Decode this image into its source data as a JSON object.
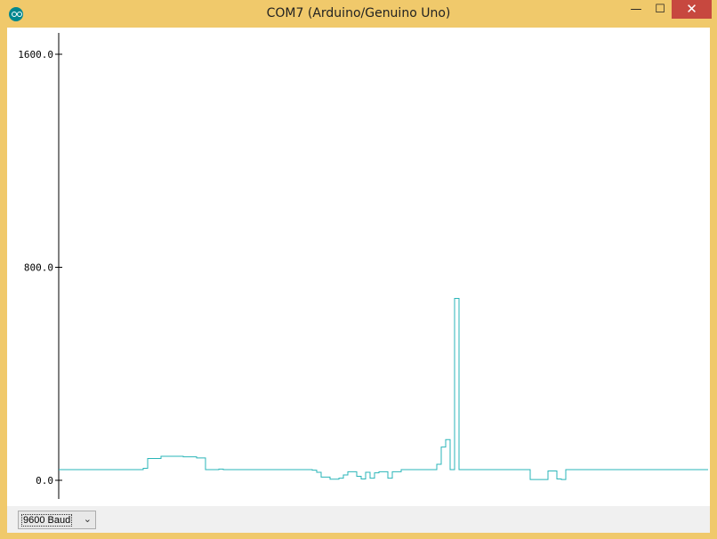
{
  "window": {
    "title": "COM7 (Arduino/Genuino Uno)",
    "minimize": "—",
    "maximize": "☐",
    "close": "✕"
  },
  "toolbar": {
    "baud_rate": "9600 Baud",
    "baud_icon": "chevron-down-icon"
  },
  "colors": {
    "series": "#2ab5b8",
    "axis": "#000000",
    "frame": "#f0c96b",
    "close": "#c7483f"
  },
  "chart_data": {
    "type": "line",
    "ylim": [
      0,
      1600
    ],
    "yticks": [
      {
        "value": 1600,
        "label": "1600.0"
      },
      {
        "value": 800,
        "label": "800.0"
      },
      {
        "value": 0,
        "label": "0.0"
      }
    ],
    "grid": false,
    "series": [
      {
        "values": [
          40,
          40,
          40,
          40,
          40,
          40,
          40,
          40,
          40,
          40,
          40,
          40,
          40,
          40,
          40,
          40,
          40,
          40,
          40,
          45,
          82,
          82,
          82,
          90,
          90,
          90,
          90,
          90,
          88,
          88,
          88,
          84,
          84,
          40,
          40,
          40,
          42,
          40,
          40,
          40,
          40,
          40,
          40,
          40,
          40,
          40,
          40,
          40,
          40,
          40,
          40,
          40,
          40,
          40,
          40,
          40,
          40,
          38,
          30,
          12,
          12,
          4,
          4,
          8,
          20,
          32,
          32,
          15,
          5,
          30,
          8,
          28,
          32,
          32,
          8,
          32,
          32,
          40,
          40,
          40,
          40,
          40,
          40,
          40,
          40,
          60,
          125,
          153,
          40,
          683,
          40,
          40,
          40,
          40,
          40,
          40,
          40,
          40,
          40,
          40,
          40,
          40,
          40,
          40,
          40,
          40,
          3,
          3,
          3,
          3,
          35,
          35,
          5,
          3,
          40,
          40,
          40,
          40,
          40,
          40,
          40,
          40,
          40,
          40,
          40,
          40,
          40,
          40,
          40,
          40,
          40,
          40,
          40,
          40,
          40,
          40,
          40,
          40,
          40,
          40,
          40,
          40,
          40,
          40,
          40,
          40
        ]
      }
    ]
  }
}
